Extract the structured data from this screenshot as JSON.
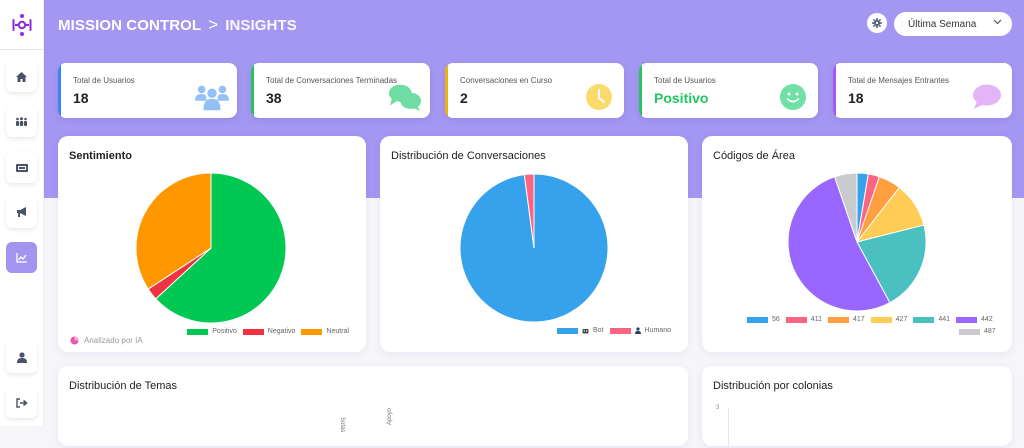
{
  "header": {
    "app_title": "MISSION CONTROL",
    "separator": ">",
    "current_page": "INSIGHTS",
    "settings_icon": "gear-icon",
    "date_range": {
      "selected": "Última Semana",
      "icon": "chevron-down-icon"
    }
  },
  "sidebar": {
    "logo_icon": "app-logo-icon",
    "items": [
      {
        "name": "home",
        "icon": "home-icon",
        "active": false
      },
      {
        "name": "users",
        "icon": "people-icon",
        "active": false
      },
      {
        "name": "tickets",
        "icon": "ticket-icon",
        "active": false
      },
      {
        "name": "campaigns",
        "icon": "megaphone-icon",
        "active": false
      },
      {
        "name": "insights",
        "icon": "chart-line-icon",
        "active": true
      },
      {
        "name": "profile",
        "icon": "user-icon",
        "active": false
      },
      {
        "name": "logout",
        "icon": "logout-icon",
        "active": false
      }
    ]
  },
  "stats": [
    {
      "title": "Total de Usuarios",
      "value": "18",
      "icon": "users-group-icon",
      "accent": "#3b82f6",
      "icon_color": "#93c0f5",
      "value_color": "#222222"
    },
    {
      "title": "Total de Conversaciones Terminadas",
      "value": "38",
      "icon": "chat-bubbles-icon",
      "accent": "#22c55e",
      "icon_color": "#6fdca4",
      "value_color": "#222222"
    },
    {
      "title": "Conversaciones en Curso",
      "value": "2",
      "icon": "clock-icon",
      "accent": "#eab308",
      "icon_color": "#fbd96b",
      "value_color": "#222222"
    },
    {
      "title": "Total de Usuarios",
      "value": "Positivo",
      "icon": "smiley-icon",
      "accent": "#22c55e",
      "icon_color": "#6fe1a6",
      "value_color": "#22c55e"
    },
    {
      "title": "Total de Mensajes Entrantes",
      "value": "18",
      "icon": "message-bubble-icon",
      "accent": "#a855f7",
      "icon_color": "#e3b5f5",
      "value_color": "#222222"
    }
  ],
  "cards": {
    "sentiment": {
      "title": "Sentimiento",
      "note": "Analizado por IA",
      "note_icon": "pie-chart-icon"
    },
    "distribution": {
      "title": "Distribución de Conversaciones"
    },
    "area_codes": {
      "title": "Códigos de Área"
    },
    "topics": {
      "title": "Distribución de Temas",
      "labels": [
        "Sofás",
        "Apoyo"
      ]
    },
    "neighborhoods": {
      "title": "Distribución por colonias",
      "y_tick": "3"
    }
  },
  "chart_data": [
    {
      "type": "pie",
      "title": "Sentimiento",
      "categories": [
        "Positivo",
        "Negativo",
        "Neutral"
      ],
      "values": [
        24,
        1,
        13
      ],
      "colors": [
        "#00c853",
        "#f0313f",
        "#ff9800"
      ],
      "legend_position": "bottom-right"
    },
    {
      "type": "pie",
      "title": "Distribución de Conversaciones",
      "categories": [
        "Bot",
        "Humano"
      ],
      "values": [
        47,
        1
      ],
      "colors": [
        "#36a2eb",
        "#ff6384"
      ],
      "legend_icons": [
        "robot-icon",
        "person-icon"
      ],
      "legend_position": "bottom-right"
    },
    {
      "type": "pie",
      "title": "Códigos de Área",
      "categories": [
        "56",
        "411",
        "417",
        "427",
        "441",
        "442",
        "487"
      ],
      "values": [
        1,
        1,
        2,
        4,
        8,
        20,
        2
      ],
      "colors": [
        "#36a2eb",
        "#ff6384",
        "#ff9f40",
        "#ffcd56",
        "#4bc0c0",
        "#9966ff",
        "#c9cbcf"
      ],
      "legend_position": "bottom"
    },
    {
      "type": "bar",
      "title": "Distribución de Temas",
      "categories": [
        "Sofás",
        "Apoyo"
      ]
    },
    {
      "type": "bar",
      "title": "Distribución por colonias",
      "y_ticks": [
        "3"
      ]
    }
  ]
}
